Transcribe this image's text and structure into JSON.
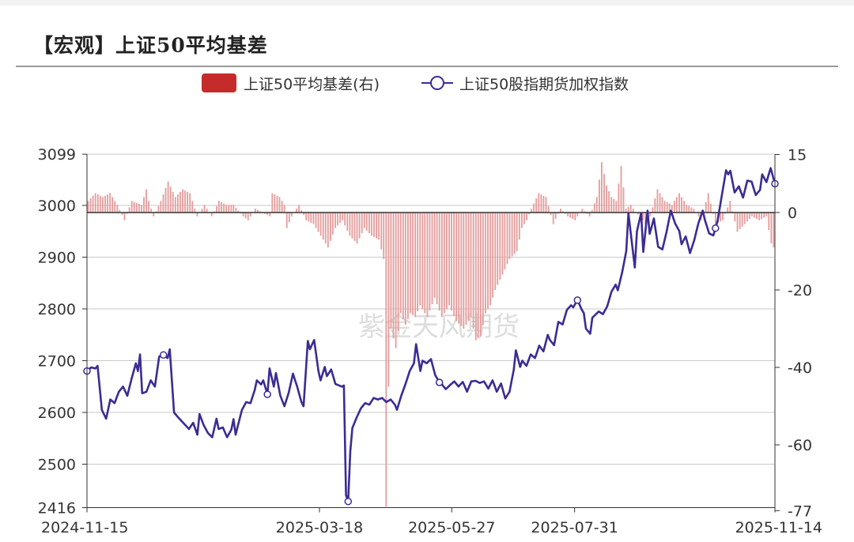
{
  "title": "【宏观】上证50平均基差",
  "legend": {
    "bar_label": "上证50平均基差(右)",
    "line_label": "上证50股指期货加权指数"
  },
  "watermark": "紫金天风期货",
  "colors": {
    "bar": "#c62b2b",
    "bar_fill": "#e49d9d",
    "line": "#3b2c94"
  },
  "chart_data": {
    "type": "bar+line",
    "title": "【宏观】上证50平均基差",
    "x_tick_labels": [
      "2024-11-15",
      "2025-03-18",
      "2025-05-27",
      "2025-07-31",
      "2025-11-14"
    ],
    "x_range": [
      "2024-11-15",
      "2025-11-14"
    ],
    "y_left": {
      "ticks": [
        2416,
        2500,
        2600,
        2700,
        2800,
        2900,
        3000,
        3099
      ],
      "range": [
        2416,
        3099
      ]
    },
    "y_right": {
      "ticks": [
        -77,
        -60,
        -40,
        -20,
        0,
        15
      ],
      "range": [
        -77,
        15
      ]
    },
    "grid": true,
    "series": [
      {
        "name": "上证50平均基差(右)",
        "type": "bar",
        "axis": "right",
        "anchors": [
          [
            0,
            3
          ],
          [
            3,
            5
          ],
          [
            6,
            4
          ],
          [
            9,
            5
          ],
          [
            12,
            2
          ],
          [
            15,
            -2
          ],
          [
            18,
            3
          ],
          [
            22,
            2
          ],
          [
            24,
            6
          ],
          [
            25,
            3
          ],
          [
            27,
            -1
          ],
          [
            30,
            3
          ],
          [
            33,
            8
          ],
          [
            36,
            4
          ],
          [
            39,
            6
          ],
          [
            42,
            5
          ],
          [
            45,
            -1
          ],
          [
            48,
            2
          ],
          [
            51,
            -1
          ],
          [
            54,
            3
          ],
          [
            57,
            2
          ],
          [
            60,
            2
          ],
          [
            64,
            -1
          ],
          [
            66,
            -2
          ],
          [
            69,
            1
          ],
          [
            72,
            0
          ],
          [
            75,
            -1
          ],
          [
            76,
            5
          ],
          [
            79,
            4
          ],
          [
            81,
            2
          ],
          [
            82,
            -4
          ],
          [
            84,
            -1
          ],
          [
            87,
            2
          ],
          [
            90,
            -2
          ],
          [
            93,
            -3
          ],
          [
            96,
            -6
          ],
          [
            99,
            -9
          ],
          [
            102,
            -4
          ],
          [
            105,
            -2
          ],
          [
            108,
            -6
          ],
          [
            111,
            -8
          ],
          [
            114,
            -4
          ],
          [
            117,
            -6
          ],
          [
            120,
            -7
          ],
          [
            122,
            -12
          ],
          [
            123,
            -76
          ],
          [
            124,
            -45
          ],
          [
            125,
            -30
          ],
          [
            127,
            -35
          ],
          [
            129,
            -26
          ],
          [
            131,
            -29
          ],
          [
            133,
            -26
          ],
          [
            135,
            -27
          ],
          [
            137,
            -24
          ],
          [
            140,
            -27
          ],
          [
            143,
            -22
          ],
          [
            146,
            -27
          ],
          [
            149,
            -24
          ],
          [
            152,
            -28
          ],
          [
            155,
            -30
          ],
          [
            158,
            -27
          ],
          [
            160,
            -33
          ],
          [
            162,
            -32
          ],
          [
            164,
            -26
          ],
          [
            166,
            -24
          ],
          [
            168,
            -20
          ],
          [
            171,
            -16
          ],
          [
            174,
            -12
          ],
          [
            177,
            -10
          ],
          [
            179,
            -4
          ],
          [
            181,
            -2
          ],
          [
            183,
            1
          ],
          [
            186,
            5
          ],
          [
            189,
            4
          ],
          [
            192,
            -3
          ],
          [
            195,
            1
          ],
          [
            198,
            -1
          ],
          [
            201,
            -2
          ],
          [
            204,
            1
          ],
          [
            207,
            -1
          ],
          [
            210,
            4
          ],
          [
            212,
            13
          ],
          [
            214,
            7
          ],
          [
            216,
            4
          ],
          [
            218,
            3
          ],
          [
            220,
            12
          ],
          [
            222,
            1
          ],
          [
            224,
            2
          ],
          [
            226,
            0
          ],
          [
            228,
            -1
          ],
          [
            230,
            -3
          ],
          [
            232,
            -1
          ],
          [
            235,
            6
          ],
          [
            238,
            3
          ],
          [
            241,
            2
          ],
          [
            244,
            5
          ],
          [
            247,
            2
          ],
          [
            250,
            1
          ],
          [
            253,
            -2
          ],
          [
            256,
            5
          ],
          [
            259,
            -3
          ],
          [
            262,
            -2
          ],
          [
            265,
            3
          ],
          [
            268,
            -5
          ],
          [
            271,
            -3
          ],
          [
            274,
            -1
          ],
          [
            277,
            -2
          ],
          [
            280,
            -1
          ],
          [
            282,
            -8
          ],
          [
            283,
            -9
          ]
        ],
        "values_by_index": "interpolated over 284 trading days from anchors [index, value]"
      },
      {
        "name": "上证50股指期货加权指数",
        "type": "line",
        "axis": "left",
        "anchors": [
          [
            0,
            2680
          ],
          [
            2,
            2687
          ],
          [
            4,
            2685
          ],
          [
            5,
            2690
          ],
          [
            7,
            2605
          ],
          [
            9,
            2588
          ],
          [
            11,
            2625
          ],
          [
            13,
            2618
          ],
          [
            15,
            2640
          ],
          [
            17,
            2650
          ],
          [
            19,
            2632
          ],
          [
            21,
            2665
          ],
          [
            23,
            2695
          ],
          [
            24,
            2680
          ],
          [
            25,
            2712
          ],
          [
            26,
            2637
          ],
          [
            28,
            2640
          ],
          [
            30,
            2662
          ],
          [
            32,
            2650
          ],
          [
            34,
            2708
          ],
          [
            36,
            2711
          ],
          [
            38,
            2705
          ],
          [
            39,
            2722
          ],
          [
            41,
            2600
          ],
          [
            43,
            2590
          ],
          [
            44,
            2586
          ],
          [
            46,
            2577
          ],
          [
            48,
            2568
          ],
          [
            50,
            2580
          ],
          [
            52,
            2557
          ],
          [
            53,
            2597
          ],
          [
            55,
            2575
          ],
          [
            57,
            2560
          ],
          [
            59,
            2552
          ],
          [
            61,
            2588
          ],
          [
            62,
            2568
          ],
          [
            64,
            2571
          ],
          [
            66,
            2552
          ],
          [
            68,
            2567
          ],
          [
            69,
            2587
          ],
          [
            70,
            2557
          ],
          [
            73,
            2605
          ],
          [
            75,
            2620
          ],
          [
            77,
            2618
          ],
          [
            79,
            2643
          ],
          [
            80,
            2662
          ],
          [
            82,
            2654
          ],
          [
            83,
            2662
          ],
          [
            85,
            2635
          ],
          [
            86,
            2685
          ],
          [
            88,
            2650
          ],
          [
            89,
            2676
          ],
          [
            91,
            2633
          ],
          [
            93,
            2612
          ],
          [
            95,
            2638
          ],
          [
            97,
            2675
          ],
          [
            99,
            2650
          ],
          [
            101,
            2620
          ],
          [
            102,
            2612
          ],
          [
            104,
            2738
          ],
          [
            105,
            2722
          ],
          [
            107,
            2740
          ],
          [
            109,
            2680
          ],
          [
            110,
            2662
          ],
          [
            112,
            2688
          ],
          [
            113,
            2670
          ],
          [
            115,
            2683
          ],
          [
            117,
            2655
          ],
          [
            120,
            2650
          ],
          [
            121,
            2652
          ],
          [
            122,
            2440
          ],
          [
            123,
            2428
          ],
          [
            124,
            2525
          ],
          [
            125,
            2570
          ],
          [
            127,
            2590
          ],
          [
            129,
            2608
          ],
          [
            131,
            2618
          ],
          [
            133,
            2615
          ],
          [
            135,
            2628
          ],
          [
            137,
            2625
          ],
          [
            139,
            2628
          ],
          [
            141,
            2620
          ],
          [
            143,
            2625
          ],
          [
            145,
            2615
          ],
          [
            146,
            2605
          ],
          [
            148,
            2632
          ],
          [
            150,
            2655
          ],
          [
            152,
            2680
          ],
          [
            154,
            2695
          ],
          [
            155,
            2732
          ],
          [
            157,
            2680
          ],
          [
            158,
            2700
          ],
          [
            160,
            2695
          ],
          [
            162,
            2703
          ],
          [
            164,
            2672
          ],
          [
            166,
            2658
          ],
          [
            167,
            2655
          ],
          [
            169,
            2645
          ],
          [
            171,
            2653
          ],
          [
            173,
            2660
          ],
          [
            175,
            2650
          ],
          [
            177,
            2659
          ],
          [
            179,
            2640
          ],
          [
            181,
            2660
          ],
          [
            183,
            2661
          ],
          [
            185,
            2657
          ],
          [
            187,
            2660
          ],
          [
            189,
            2646
          ],
          [
            191,
            2662
          ],
          [
            193,
            2640
          ],
          [
            195,
            2656
          ],
          [
            197,
            2627
          ],
          [
            199,
            2640
          ],
          [
            201,
            2682
          ],
          [
            202,
            2720
          ],
          [
            204,
            2688
          ],
          [
            205,
            2700
          ],
          [
            207,
            2690
          ],
          [
            209,
            2712
          ],
          [
            211,
            2705
          ],
          [
            213,
            2729
          ],
          [
            215,
            2718
          ],
          [
            217,
            2750
          ],
          [
            218,
            2740
          ],
          [
            220,
            2730
          ],
          [
            222,
            2775
          ],
          [
            224,
            2770
          ],
          [
            226,
            2798
          ],
          [
            228,
            2807
          ],
          [
            229,
            2803
          ],
          [
            231,
            2817
          ],
          [
            233,
            2799
          ],
          [
            234,
            2792
          ],
          [
            235,
            2762
          ],
          [
            237,
            2752
          ],
          [
            238,
            2783
          ],
          [
            239,
            2787
          ],
          [
            241,
            2795
          ],
          [
            243,
            2790
          ],
          [
            245,
            2805
          ],
          [
            247,
            2833
          ],
          [
            249,
            2847
          ],
          [
            250,
            2836
          ],
          [
            252,
            2870
          ],
          [
            254,
            2912
          ],
          [
            255,
            2985
          ],
          [
            256,
            2950
          ],
          [
            258,
            2880
          ],
          [
            259,
            2950
          ],
          [
            261,
            2985
          ],
          [
            262,
            2910
          ],
          [
            264,
            2990
          ],
          [
            265,
            2945
          ],
          [
            267,
            2975
          ],
          [
            269,
            2920
          ],
          [
            271,
            2915
          ],
          [
            273,
            2950
          ],
          [
            275,
            2990
          ],
          [
            277,
            2965
          ],
          [
            279,
            2950
          ],
          [
            280,
            2925
          ],
          [
            282,
            2940
          ],
          [
            284,
            2908
          ],
          [
            286,
            2933
          ],
          [
            288,
            2966
          ],
          [
            290,
            2990
          ],
          [
            291,
            2972
          ],
          [
            293,
            2946
          ],
          [
            295,
            2942
          ],
          [
            297,
            2970
          ],
          [
            299,
            3020
          ],
          [
            301,
            3068
          ],
          [
            302,
            3060
          ],
          [
            303,
            3067
          ],
          [
            305,
            3025
          ],
          [
            307,
            3037
          ],
          [
            309,
            3015
          ],
          [
            311,
            3048
          ],
          [
            313,
            3046
          ],
          [
            315,
            3020
          ],
          [
            317,
            3030
          ],
          [
            318,
            3060
          ],
          [
            320,
            3045
          ],
          [
            322,
            3072
          ],
          [
            324,
            3042
          ]
        ],
        "markers_at_dates": [
          "2024-11-15",
          "2024-12-26",
          "2025-02-19",
          "2025-04-02",
          "2025-05-21",
          "2025-08-01",
          "2025-10-13",
          "2025-11-14"
        ]
      }
    ]
  }
}
